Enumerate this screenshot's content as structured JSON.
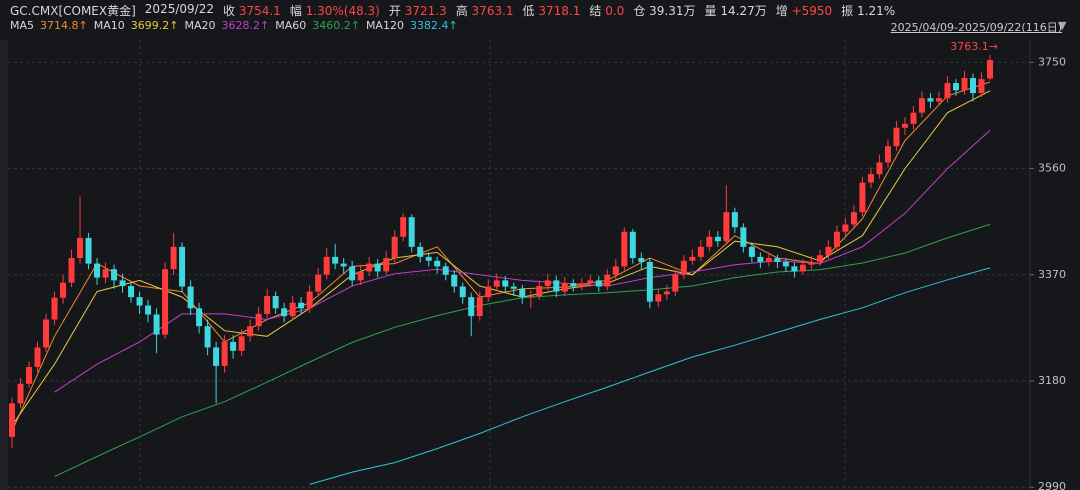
{
  "chart_data": {
    "type": "candlestick",
    "symbol": "GC.CMX[COMEX黄金]",
    "date": "2025/09/22",
    "quote": [
      {
        "label": "收",
        "value": "3754.1",
        "color": "#ff4444"
      },
      {
        "label": "幅",
        "value": "1.30%(48.3)",
        "color": "#ff4444"
      },
      {
        "label": "开",
        "value": "3721.3",
        "color": "#ff4444"
      },
      {
        "label": "高",
        "value": "3763.1",
        "color": "#ff4444"
      },
      {
        "label": "低",
        "value": "3718.1",
        "color": "#ff4444"
      },
      {
        "label": "结",
        "value": "0.0",
        "color": "#ff4444"
      },
      {
        "label": "仓",
        "value": "39.31万",
        "color": "#d8d8d8"
      },
      {
        "label": "量",
        "value": "14.27万",
        "color": "#d8d8d8"
      },
      {
        "label": "增",
        "value": "+5950",
        "color": "#ff4444"
      },
      {
        "label": "振",
        "value": "1.21%",
        "color": "#d8d8d8"
      }
    ],
    "range": "2025/04/09-2025/09/22(116日)",
    "high_marker": "3763.1→",
    "up_color": "#ff3b3b",
    "down_color": "#3fd8e0",
    "ylim": [
      2985,
      3790
    ],
    "yticks": [
      2990,
      3180,
      3370,
      3560,
      3750
    ],
    "grid": true,
    "open": [
      3080,
      3140,
      3175,
      3205,
      3240,
      3290,
      3329,
      3356,
      3400,
      3436,
      3390,
      3365,
      3380,
      3360,
      3350,
      3330,
      3315,
      3299,
      3263,
      3380,
      3420,
      3349,
      3310,
      3278,
      3240,
      3207,
      3250,
      3234,
      3260,
      3278,
      3300,
      3332,
      3310,
      3296,
      3320,
      3310,
      3340,
      3370,
      3402,
      3390,
      3385,
      3360,
      3376,
      3390,
      3376,
      3400,
      3438,
      3473,
      3420,
      3402,
      3395,
      3385,
      3370,
      3349,
      3330,
      3296,
      3330,
      3349,
      3360,
      3349,
      3345,
      3330,
      3332,
      3350,
      3360,
      3340,
      3355,
      3349,
      3355,
      3360,
      3349,
      3370,
      3385,
      3447,
      3400,
      3393,
      3322,
      3335,
      3340,
      3370,
      3395,
      3402,
      3420,
      3438,
      3430,
      3482,
      3455,
      3420,
      3402,
      3393,
      3400,
      3393,
      3385,
      3376,
      3388,
      3393,
      3405,
      3420,
      3447,
      3460,
      3482,
      3535,
      3550,
      3571,
      3600,
      3633,
      3640,
      3660,
      3686,
      3680,
      3686,
      3713,
      3700,
      3722,
      3695,
      3721.3
    ],
    "high": [
      3150,
      3185,
      3215,
      3250,
      3300,
      3340,
      3370,
      3415,
      3510,
      3445,
      3400,
      3392,
      3388,
      3372,
      3358,
      3340,
      3325,
      3310,
      3392,
      3445,
      3428,
      3360,
      3320,
      3290,
      3250,
      3262,
      3262,
      3272,
      3290,
      3312,
      3345,
      3340,
      3320,
      3332,
      3330,
      3352,
      3382,
      3418,
      3425,
      3400,
      3395,
      3388,
      3402,
      3398,
      3412,
      3450,
      3480,
      3478,
      3428,
      3410,
      3402,
      3392,
      3378,
      3356,
      3338,
      3340,
      3362,
      3372,
      3368,
      3356,
      3352,
      3342,
      3360,
      3372,
      3368,
      3366,
      3362,
      3364,
      3370,
      3368,
      3380,
      3398,
      3455,
      3452,
      3410,
      3400,
      3345,
      3352,
      3380,
      3405,
      3415,
      3432,
      3450,
      3448,
      3530,
      3490,
      3462,
      3428,
      3410,
      3410,
      3406,
      3400,
      3392,
      3398,
      3404,
      3415,
      3432,
      3458,
      3472,
      3495,
      3545,
      3562,
      3585,
      3612,
      3645,
      3652,
      3672,
      3698,
      3695,
      3698,
      3725,
      3720,
      3735,
      3730,
      3732,
      3763.1
    ],
    "low": [
      3060,
      3132,
      3168,
      3196,
      3232,
      3280,
      3318,
      3348,
      3390,
      3380,
      3352,
      3355,
      3345,
      3338,
      3320,
      3300,
      3285,
      3230,
      3255,
      3370,
      3338,
      3298,
      3265,
      3226,
      3140,
      3195,
      3220,
      3225,
      3250,
      3270,
      3292,
      3300,
      3285,
      3288,
      3300,
      3302,
      3332,
      3362,
      3380,
      3372,
      3350,
      3352,
      3368,
      3365,
      3370,
      3392,
      3430,
      3410,
      3392,
      3385,
      3372,
      3360,
      3338,
      3318,
      3260,
      3288,
      3322,
      3340,
      3338,
      3332,
      3318,
      3310,
      3325,
      3342,
      3330,
      3332,
      3340,
      3342,
      3348,
      3340,
      3342,
      3362,
      3378,
      3390,
      3380,
      3310,
      3312,
      3325,
      3332,
      3362,
      3388,
      3395,
      3412,
      3420,
      3425,
      3445,
      3410,
      3392,
      3382,
      3385,
      3382,
      3375,
      3365,
      3370,
      3380,
      3386,
      3398,
      3412,
      3440,
      3452,
      3475,
      3525,
      3542,
      3562,
      3592,
      3620,
      3630,
      3652,
      3668,
      3672,
      3678,
      3690,
      3692,
      3680,
      3688,
      3718.1
    ],
    "close": [
      3140,
      3175,
      3205,
      3240,
      3290,
      3329,
      3356,
      3400,
      3436,
      3390,
      3365,
      3380,
      3360,
      3350,
      3330,
      3315,
      3299,
      3263,
      3380,
      3420,
      3349,
      3310,
      3278,
      3240,
      3207,
      3250,
      3234,
      3260,
      3278,
      3300,
      3332,
      3310,
      3296,
      3320,
      3310,
      3340,
      3370,
      3402,
      3390,
      3385,
      3360,
      3376,
      3390,
      3376,
      3400,
      3438,
      3473,
      3420,
      3402,
      3395,
      3385,
      3370,
      3349,
      3330,
      3296,
      3330,
      3349,
      3360,
      3349,
      3345,
      3330,
      3332,
      3350,
      3360,
      3340,
      3355,
      3349,
      3355,
      3360,
      3349,
      3370,
      3385,
      3447,
      3400,
      3393,
      3322,
      3335,
      3340,
      3370,
      3395,
      3402,
      3420,
      3438,
      3430,
      3482,
      3455,
      3420,
      3402,
      3393,
      3400,
      3393,
      3385,
      3376,
      3388,
      3393,
      3405,
      3420,
      3447,
      3460,
      3482,
      3535,
      3550,
      3571,
      3600,
      3633,
      3640,
      3660,
      3686,
      3680,
      3686,
      3713,
      3700,
      3722,
      3695,
      3720,
      3754.1
    ],
    "series": [
      {
        "name": "MA5",
        "color": "#f08a30",
        "last_label": "3714.8↑",
        "x": [
          0,
          5,
          10,
          15,
          20,
          25,
          30,
          35,
          40,
          45,
          50,
          55,
          60,
          65,
          70,
          75,
          80,
          85,
          90,
          95,
          100,
          105,
          110,
          115
        ],
        "values": [
          3090,
          3260,
          3390,
          3350,
          3340,
          3250,
          3290,
          3320,
          3385,
          3390,
          3420,
          3330,
          3345,
          3348,
          3360,
          3400,
          3370,
          3440,
          3400,
          3390,
          3470,
          3610,
          3690,
          3714.8
        ]
      },
      {
        "name": "MA10",
        "color": "#e8c840",
        "last_label": "3699.2↑",
        "x": [
          0,
          5,
          10,
          15,
          20,
          25,
          30,
          35,
          40,
          45,
          50,
          55,
          60,
          65,
          70,
          75,
          80,
          85,
          90,
          95,
          100,
          105,
          110,
          115
        ],
        "values": [
          3100,
          3210,
          3340,
          3360,
          3330,
          3270,
          3260,
          3310,
          3370,
          3400,
          3410,
          3350,
          3330,
          3345,
          3355,
          3385,
          3370,
          3430,
          3420,
          3395,
          3440,
          3560,
          3660,
          3699.2
        ]
      },
      {
        "name": "MA20",
        "color": "#c040c8",
        "last_label": "3628.2↑",
        "x": [
          5,
          10,
          15,
          20,
          25,
          30,
          35,
          40,
          45,
          50,
          55,
          60,
          65,
          70,
          75,
          80,
          85,
          90,
          95,
          100,
          105,
          110,
          115
        ],
        "values": [
          3160,
          3210,
          3250,
          3300,
          3300,
          3290,
          3310,
          3350,
          3372,
          3380,
          3370,
          3360,
          3355,
          3350,
          3365,
          3375,
          3388,
          3395,
          3390,
          3420,
          3480,
          3560,
          3628.2
        ]
      },
      {
        "name": "MA60",
        "color": "#2fa050",
        "last_label": "3460.2↑",
        "x": [
          5,
          10,
          15,
          20,
          25,
          30,
          35,
          40,
          45,
          50,
          55,
          60,
          65,
          70,
          75,
          80,
          85,
          90,
          95,
          100,
          105,
          110,
          115
        ],
        "values": [
          3009,
          3045,
          3080,
          3116,
          3143,
          3178,
          3214,
          3249,
          3276,
          3297,
          3315,
          3329,
          3334,
          3338,
          3343,
          3350,
          3365,
          3375,
          3379,
          3391,
          3409,
          3436,
          3460.2
        ]
      },
      {
        "name": "MA120",
        "color": "#35c0d8",
        "last_label": "3382.4↑",
        "x": [
          35,
          40,
          45,
          50,
          55,
          60,
          65,
          70,
          75,
          80,
          85,
          90,
          95,
          100,
          105,
          110,
          115
        ],
        "values": [
          2995,
          3017,
          3034,
          3059,
          3086,
          3116,
          3143,
          3169,
          3196,
          3223,
          3244,
          3267,
          3290,
          3311,
          3338,
          3361,
          3382.4
        ]
      }
    ]
  }
}
